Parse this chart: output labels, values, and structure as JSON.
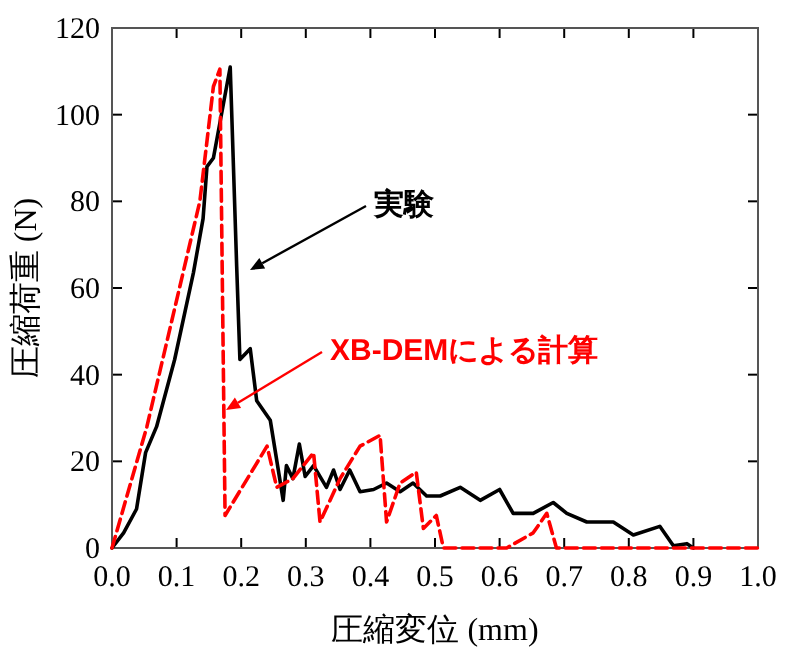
{
  "chart_data": {
    "type": "line",
    "xlabel": "圧縮変位 (mm)",
    "ylabel": "圧縮荷重 (N)",
    "xlim": [
      0,
      1.0
    ],
    "ylim": [
      0,
      120
    ],
    "xticks": [
      {
        "value": 0,
        "label": "0.0"
      },
      0.1,
      0.2,
      0.3,
      0.4,
      0.5,
      0.6,
      0.7,
      0.8,
      0.9,
      {
        "value": 1.0,
        "label": "1.0"
      }
    ],
    "yticks": [
      0,
      20,
      40,
      60,
      80,
      100,
      120
    ],
    "grid": false,
    "series": [
      {
        "color": "#000000",
        "line_style": "solid",
        "x": [
          0,
          0.018,
          0.038,
          0.052,
          0.069,
          0.097,
          0.126,
          0.141,
          0.147,
          0.157,
          0.183,
          0.193,
          0.198,
          0.214,
          0.224,
          0.245,
          0.265,
          0.27,
          0.28,
          0.29,
          0.299,
          0.312,
          0.332,
          0.343,
          0.353,
          0.368,
          0.384,
          0.405,
          0.425,
          0.446,
          0.466,
          0.487,
          0.508,
          0.539,
          0.57,
          0.6,
          0.621,
          0.652,
          0.683,
          0.704,
          0.735,
          0.776,
          0.807,
          0.848,
          0.869,
          0.89,
          0.9
        ],
        "values": [
          0,
          3.5,
          9,
          22,
          28,
          43.5,
          63.5,
          76,
          88,
          90,
          111,
          65,
          43.5,
          46,
          34,
          29.5,
          11,
          19,
          16,
          24,
          16.5,
          19,
          14,
          18,
          13.5,
          18,
          13,
          13.5,
          15,
          13,
          15,
          12,
          12,
          14,
          11,
          13.5,
          8,
          8,
          10.5,
          8,
          6,
          6,
          3,
          5,
          0.5,
          1,
          0
        ]
      },
      {
        "color": "#ff0000",
        "line_style": "dashed",
        "x": [
          0,
          0.054,
          0.136,
          0.157,
          0.167,
          0.175,
          0.24,
          0.255,
          0.28,
          0.312,
          0.322,
          0.353,
          0.384,
          0.415,
          0.425,
          0.446,
          0.471,
          0.482,
          0.502,
          0.513,
          0.611,
          0.652,
          0.673,
          0.688,
          1.0
        ],
        "values": [
          0,
          28,
          80,
          106.5,
          110.5,
          7.5,
          23.5,
          14,
          16,
          22,
          6,
          16,
          23.5,
          26,
          6,
          15,
          17.5,
          4.5,
          7.5,
          0,
          0,
          3.5,
          8,
          0,
          0
        ]
      }
    ],
    "annotations": [
      "実験",
      "XB-DEMによる計算"
    ]
  }
}
